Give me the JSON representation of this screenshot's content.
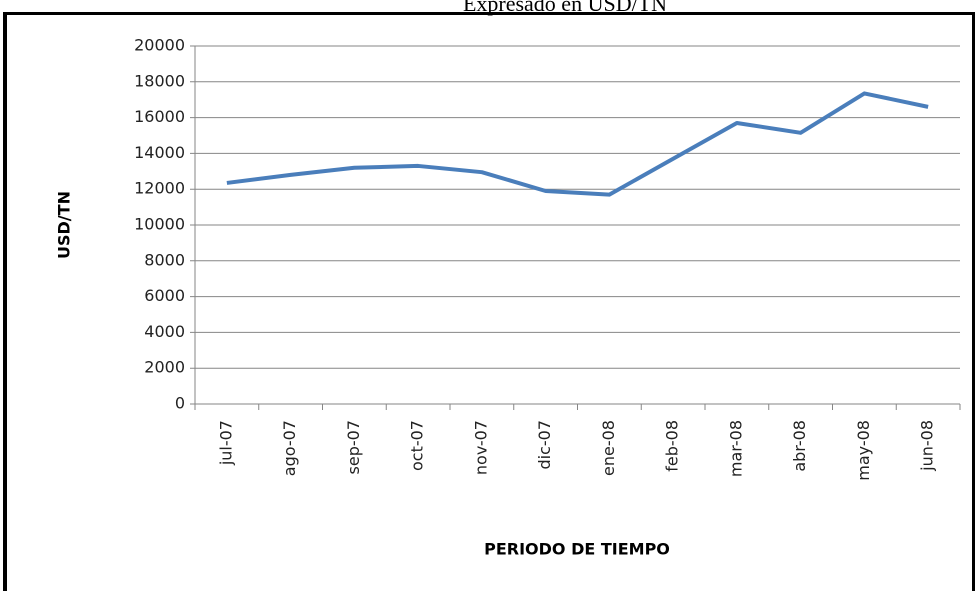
{
  "chart_data": {
    "type": "line",
    "title": "Expresado en USD/TN",
    "x_label": "PERIODO DE TIEMPO",
    "y_label": "USD/TN",
    "categories": [
      "jul-07",
      "ago-07",
      "sep-07",
      "oct-07",
      "nov-07",
      "dic-07",
      "ene-08",
      "feb-08",
      "mar-08",
      "abr-08",
      "may-08",
      "jun-08"
    ],
    "values": [
      12350,
      12800,
      13200,
      13300,
      12950,
      11900,
      11700,
      13700,
      15700,
      15150,
      17350,
      16600
    ],
    "color": "#4a7ebb",
    "ylim": [
      0,
      20000
    ],
    "yticks": [
      0,
      2000,
      4000,
      6000,
      8000,
      10000,
      12000,
      14000,
      16000,
      18000,
      20000
    ],
    "grid": true
  }
}
